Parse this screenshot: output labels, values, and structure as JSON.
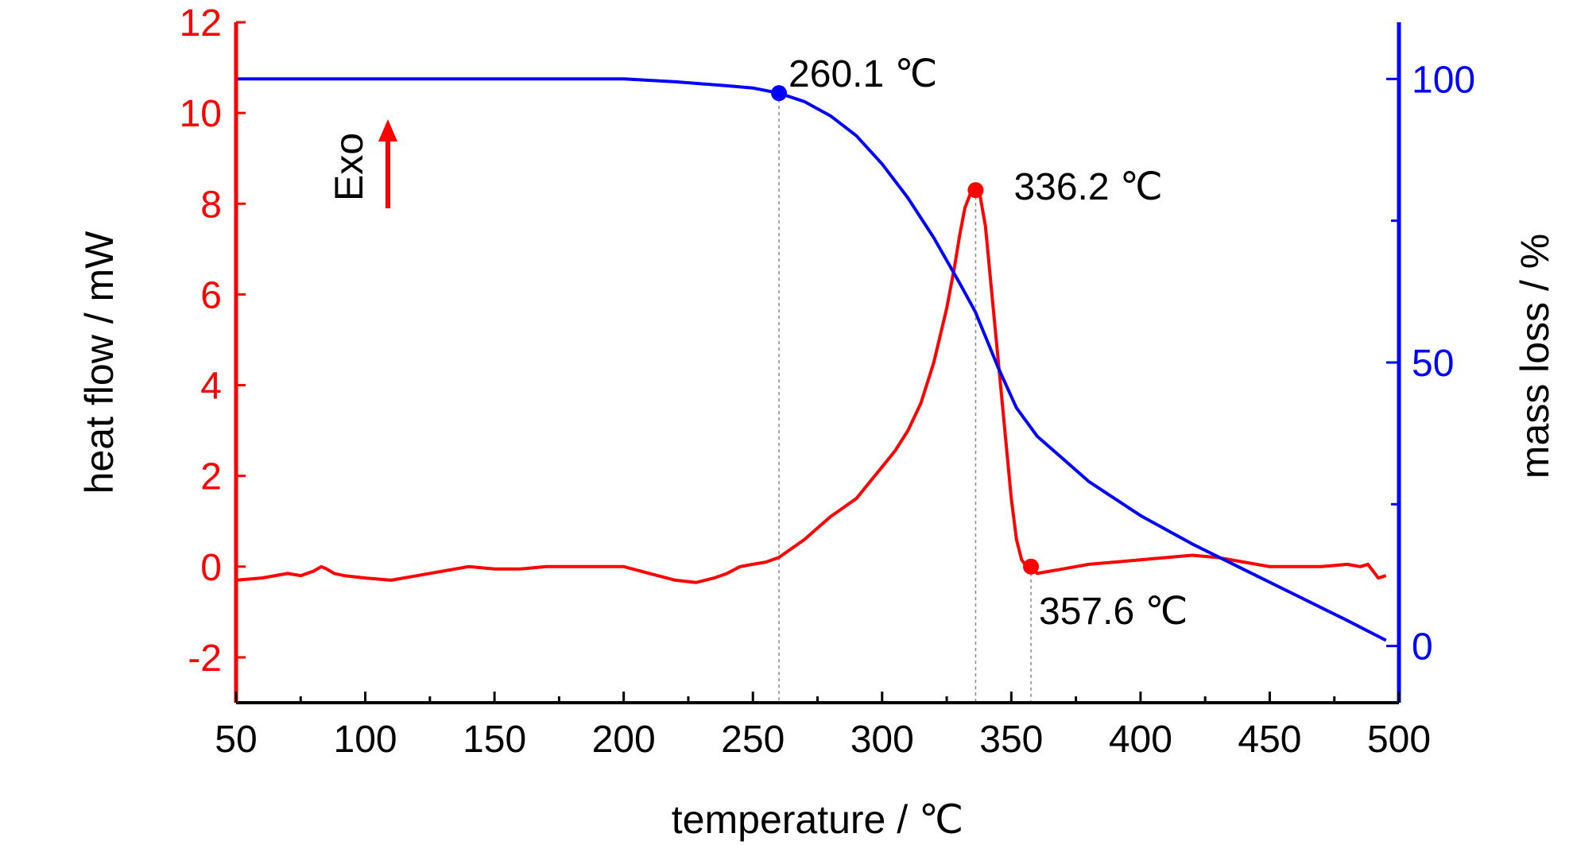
{
  "chart_data": {
    "type": "line",
    "xlabel": "temperature / ℃",
    "ylabel_left": "heat flow / mW",
    "ylabel_right": "mass loss / %",
    "xlim": [
      50,
      500
    ],
    "ylim_left": [
      -3,
      12
    ],
    "ylim_right": [
      -10,
      110
    ],
    "x_ticks": [
      50,
      100,
      150,
      200,
      250,
      300,
      350,
      400,
      450,
      500
    ],
    "y_left_ticks": [
      -2,
      0,
      2,
      4,
      6,
      8,
      10,
      12
    ],
    "y_right_ticks": [
      0,
      50,
      100
    ],
    "colors": {
      "heat_flow": "#ff0000",
      "mass_loss": "#0000ff",
      "axis_left": "#ff0000",
      "axis_right": "#0000ff"
    },
    "exo_label": "Exo",
    "series": [
      {
        "axis": "left",
        "color": "#ff0000",
        "x": [
          50,
          60,
          70,
          75,
          80,
          83,
          85,
          88,
          92,
          100,
          110,
          120,
          130,
          140,
          150,
          160,
          170,
          180,
          190,
          200,
          210,
          220,
          228,
          235,
          240,
          245,
          250,
          255,
          260,
          265,
          270,
          275,
          280,
          285,
          290,
          295,
          300,
          305,
          310,
          315,
          320,
          325,
          328,
          330,
          332,
          334,
          336.2,
          338,
          340,
          342,
          345,
          348,
          350,
          352,
          354,
          356,
          357.6,
          360,
          365,
          370,
          380,
          390,
          400,
          410,
          420,
          430,
          440,
          450,
          460,
          470,
          480,
          485,
          488,
          490,
          492,
          495
        ],
        "y": [
          -0.3,
          -0.25,
          -0.15,
          -0.2,
          -0.1,
          0.0,
          -0.05,
          -0.15,
          -0.2,
          -0.25,
          -0.3,
          -0.2,
          -0.1,
          0.0,
          -0.05,
          -0.05,
          0.0,
          0.0,
          0.0,
          0.0,
          -0.15,
          -0.3,
          -0.35,
          -0.25,
          -0.15,
          0.0,
          0.05,
          0.1,
          0.2,
          0.4,
          0.6,
          0.85,
          1.1,
          1.3,
          1.5,
          1.85,
          2.2,
          2.55,
          3.0,
          3.6,
          4.5,
          5.7,
          6.6,
          7.3,
          7.9,
          8.2,
          8.3,
          8.15,
          7.5,
          6.3,
          4.5,
          2.7,
          1.5,
          0.6,
          0.15,
          0.0,
          0.0,
          -0.15,
          -0.1,
          -0.05,
          0.05,
          0.1,
          0.15,
          0.2,
          0.25,
          0.2,
          0.1,
          0.0,
          0.0,
          0.0,
          0.05,
          0.0,
          0.05,
          -0.1,
          -0.25,
          -0.2
        ]
      },
      {
        "axis": "right",
        "color": "#0000ff",
        "x": [
          50,
          100,
          150,
          200,
          220,
          240,
          250,
          260.1,
          270,
          280,
          290,
          300,
          310,
          320,
          330,
          336,
          345,
          352,
          360,
          370,
          380,
          390,
          400,
          420,
          440,
          460,
          480,
          495
        ],
        "y": [
          100,
          100,
          100,
          100,
          99.5,
          98.8,
          98.4,
          97.5,
          96,
          93.5,
          90,
          85,
          79,
          72,
          64,
          59,
          49,
          42,
          37,
          33,
          29,
          26,
          23,
          18,
          13.5,
          9,
          4.5,
          1
        ]
      }
    ],
    "annotations": [
      {
        "text": "260.1 ℃",
        "x": 260.1,
        "y": 97.5,
        "axis": "right",
        "color": "#0000ff"
      },
      {
        "text": "336.2 ℃",
        "x": 336.2,
        "y": 8.3,
        "axis": "left",
        "color": "#ff0000"
      },
      {
        "text": "357.6 ℃",
        "x": 357.6,
        "y": 0.0,
        "axis": "left",
        "color": "#ff0000"
      }
    ]
  }
}
